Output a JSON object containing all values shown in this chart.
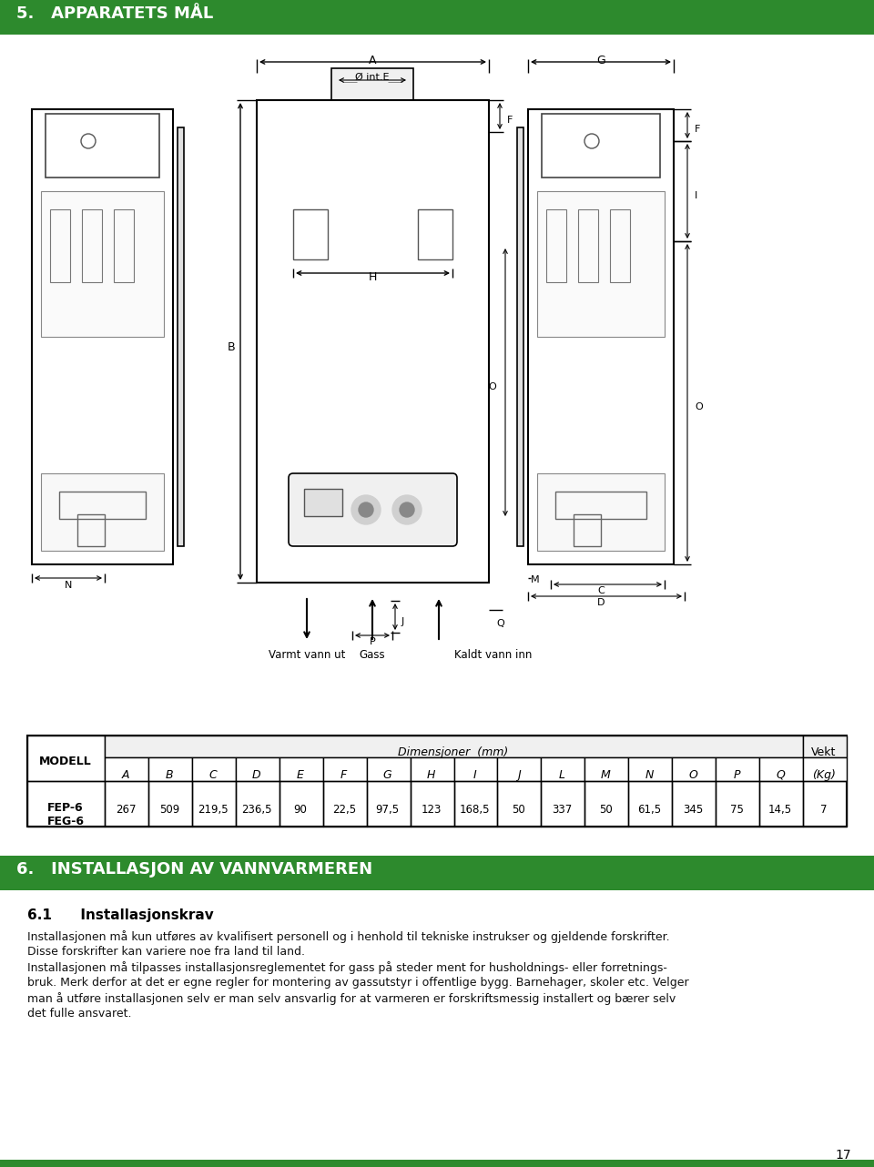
{
  "title1": "5.   APPARATETS MÅL",
  "title2": "6.   INSTALLASJON AV VANNVARMEREN",
  "section2_heading": "6.1      Installasjonskrav",
  "section2_lines": [
    "Installasjonen må kun utføres av kvalifisert personell og i henhold til tekniske instrukser og gjeldende forskrifter.",
    "Disse forskrifter kan variere noe fra land til land.",
    "Installasjonen må tilpasses installasjonsreglementet for gass på steder ment for husholdnings- eller forretnings-",
    "bruk. Merk derfor at det er egne regler for montering av gassutstyr i offentlige bygg. Barnehager, skoler etc. Velger",
    "man å utføre installasjonen selv er man selv ansvarlig for at varmeren er forskriftsmessig installert og bærer selv",
    "det fulle ansvaret."
  ],
  "green_color": "#2d8a2d",
  "page_number": "17",
  "table_col_headers": [
    "A",
    "B",
    "C",
    "D",
    "E",
    "F",
    "G",
    "H",
    "I",
    "J",
    "L",
    "M",
    "N",
    "O",
    "P",
    "Q",
    "(Kg)"
  ],
  "table_model": "FEP-6\nFEG-6",
  "table_values": [
    "267",
    "509",
    "219,5",
    "236,5",
    "90",
    "22,5",
    "97,5",
    "123",
    "168,5",
    "50",
    "337",
    "50",
    "61,5",
    "345",
    "75",
    "14,5",
    "7"
  ],
  "dim_header": "Dimensjoner  (mm)",
  "vekt_header": "Vekt",
  "label_varmt": "Varmt vann ut",
  "label_kaldt": "Kaldt vann inn",
  "label_gass": "Gass"
}
